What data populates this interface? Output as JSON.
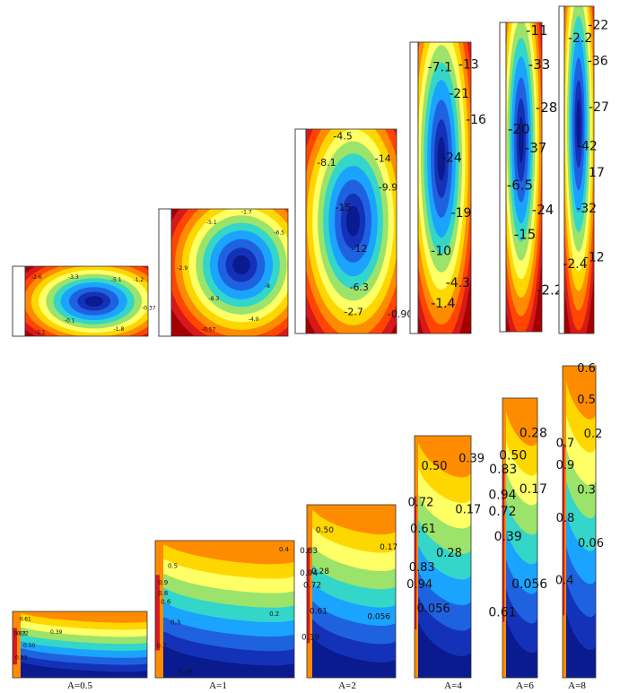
{
  "colors": {
    "psi_scale": [
      "#a50000",
      "#d7191c",
      "#ff4500",
      "#ff8c00",
      "#ffd700",
      "#ffff66",
      "#9be36a",
      "#33d6c8",
      "#1aa3ff",
      "#1f62e0",
      "#1432b8",
      "#0a1a8f"
    ],
    "temp_scale": [
      "#0a1a8f",
      "#1432b8",
      "#1f62e0",
      "#1aa3ff",
      "#33d6c8",
      "#9be36a",
      "#ffff66",
      "#ffd700",
      "#ff8c00",
      "#ff4500",
      "#d7191c",
      "#a50000"
    ]
  },
  "panels": [
    {
      "aspect_label": "A=0.5",
      "stream_labels": [
        "-2.6",
        "-3.3",
        "-5.1",
        "-1.2",
        "-0.37",
        "-0.1",
        "-1.8",
        "-1.1"
      ],
      "temp_labels": [
        "0.61",
        "0.72",
        "0.50",
        "0.39",
        "0.83",
        "0.83"
      ]
    },
    {
      "aspect_label": "A=1",
      "stream_labels": [
        "-1.7",
        "-5.1",
        "-2.9",
        "-6.5",
        "-8.3",
        "-8",
        "-4.0",
        "-0.57"
      ],
      "temp_labels": [
        "0.4",
        "0.5",
        "0.8",
        "0.6",
        "0.9",
        "0.3",
        "0.2",
        "0.7",
        "0.05"
      ]
    },
    {
      "aspect_label": "A=2",
      "stream_labels": [
        "-4.5",
        "-8.1",
        "-14",
        "-9.9",
        "-15",
        "-12",
        "-6.3",
        "-2.7",
        "-0.90"
      ],
      "temp_labels": [
        "0.50",
        "0.17",
        "0.83",
        "0.94",
        "0.28",
        "0.72",
        "0.61",
        "0.39",
        "0.056"
      ]
    },
    {
      "aspect_label": "A=4",
      "stream_labels": [
        "-13",
        "-7.1",
        "-21",
        "-16",
        "-24",
        "-19",
        "-10",
        "-4.3",
        "-1.4"
      ],
      "temp_labels": [
        "0.50",
        "0.39",
        "0.72",
        "0.17",
        "0.61",
        "0.28",
        "0.83",
        "0.94",
        "0.056"
      ]
    },
    {
      "aspect_label": "A=6",
      "stream_labels": [
        "-11",
        "-33",
        "-28",
        "-20",
        "-37",
        "-6.5",
        "-24",
        "-15",
        "-2.2"
      ],
      "temp_labels": [
        "0.28",
        "0.50",
        "0.83",
        "0.94",
        "0.17",
        "0.72",
        "0.39",
        "0.056",
        "0.61"
      ]
    },
    {
      "aspect_label": "A=8",
      "stream_labels": [
        "-22",
        "-2.2",
        "-36",
        "-27",
        "-42",
        "17",
        "-32",
        "-12",
        "-2.4"
      ],
      "temp_labels": [
        "0.6",
        "0.5",
        "0.2",
        "0.7",
        "0.9",
        "0.3",
        "0.8",
        "0.06",
        "0.4"
      ]
    }
  ]
}
